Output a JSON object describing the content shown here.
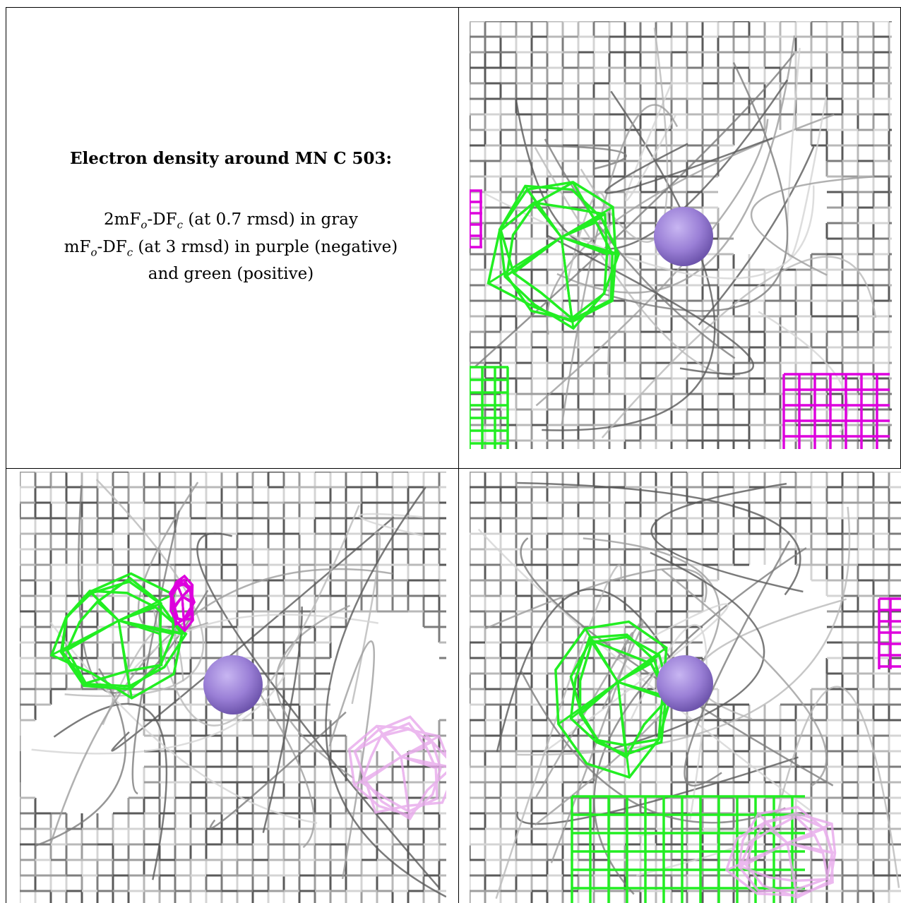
{
  "caption": {
    "title": "Electron density around MN C 503:",
    "line1_a": "2mF",
    "line1_sub1": "o",
    "line1_b": "-DF",
    "line1_sub2": "c",
    "line1_c": " (at 0.7 rmsd) in gray",
    "line2_a": "mF",
    "line2_sub1": "o",
    "line2_b": "-DF",
    "line2_sub2": "c",
    "line2_c": " (at 3 rmsd) in purple (negative)",
    "line3": "and green (positive)"
  },
  "colors": {
    "gray_map": "#9e9e9e",
    "dark_gray": "#5a5a5a",
    "light_gray": "#d4d4d4",
    "positive": "#22ee22",
    "negative": "#dd00dd",
    "atom": "#9a7fd6"
  },
  "panels": [
    {
      "id": "top-right",
      "atom": "mn-atom"
    },
    {
      "id": "bottom-left",
      "atom": "mn-atom"
    },
    {
      "id": "bottom-right",
      "atom": "mn-atom"
    }
  ]
}
